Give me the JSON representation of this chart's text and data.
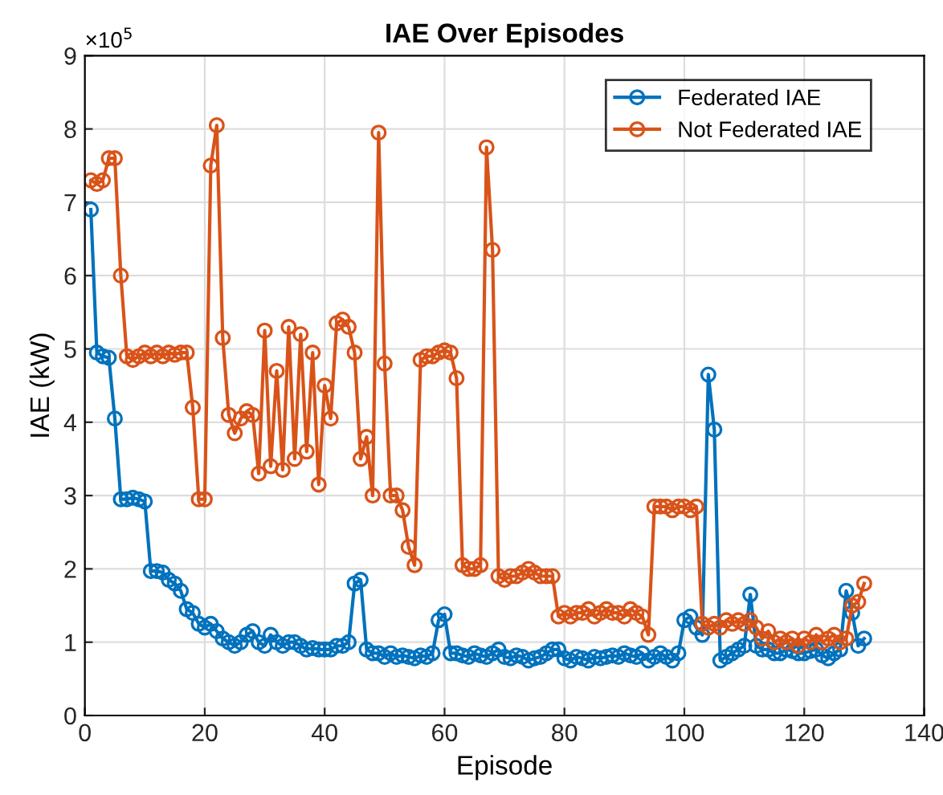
{
  "chart_data": {
    "type": "line",
    "title": "IAE Over Episodes",
    "xlabel": "Episode",
    "ylabel": "IAE (kW)",
    "annotations": [
      "×10$^{5}$"
    ],
    "x": [
      1,
      2,
      3,
      4,
      5,
      6,
      7,
      8,
      9,
      10,
      11,
      12,
      13,
      14,
      15,
      16,
      17,
      18,
      19,
      20,
      21,
      22,
      23,
      24,
      25,
      26,
      27,
      28,
      29,
      30,
      31,
      32,
      33,
      34,
      35,
      36,
      37,
      38,
      39,
      40,
      41,
      42,
      43,
      44,
      45,
      46,
      47,
      48,
      49,
      50,
      51,
      52,
      53,
      54,
      55,
      56,
      57,
      58,
      59,
      60,
      61,
      62,
      63,
      64,
      65,
      66,
      67,
      68,
      69,
      70,
      71,
      72,
      73,
      74,
      75,
      76,
      77,
      78,
      79,
      80,
      81,
      82,
      83,
      84,
      85,
      86,
      87,
      88,
      89,
      90,
      91,
      92,
      93,
      94,
      95,
      96,
      97,
      98,
      99,
      100,
      101,
      102,
      103,
      104,
      105,
      106,
      107,
      108,
      109,
      110,
      111,
      112,
      113,
      114,
      115,
      116,
      117,
      118,
      119,
      120,
      121,
      122,
      123,
      124,
      125,
      126,
      127,
      128,
      129,
      130
    ],
    "series": [
      {
        "name": "Federated IAE",
        "color": "#0072bd",
        "values": [
          6.9,
          4.95,
          4.9,
          4.88,
          4.05,
          2.95,
          2.95,
          2.97,
          2.95,
          2.92,
          1.97,
          1.97,
          1.95,
          1.85,
          1.8,
          1.7,
          1.45,
          1.4,
          1.25,
          1.2,
          1.25,
          1.15,
          1.05,
          1.0,
          0.95,
          1.0,
          1.1,
          1.15,
          1.0,
          0.95,
          1.1,
          1.0,
          0.95,
          1.0,
          1.0,
          0.95,
          0.9,
          0.92,
          0.9,
          0.9,
          0.9,
          0.95,
          0.95,
          1.0,
          1.8,
          1.85,
          0.9,
          0.85,
          0.85,
          0.8,
          0.85,
          0.8,
          0.82,
          0.8,
          0.78,
          0.82,
          0.8,
          0.85,
          1.3,
          1.38,
          0.85,
          0.85,
          0.82,
          0.8,
          0.85,
          0.82,
          0.8,
          0.85,
          0.9,
          0.8,
          0.78,
          0.82,
          0.8,
          0.75,
          0.78,
          0.8,
          0.85,
          0.9,
          0.9,
          0.78,
          0.75,
          0.8,
          0.78,
          0.75,
          0.8,
          0.78,
          0.8,
          0.82,
          0.8,
          0.85,
          0.82,
          0.8,
          0.85,
          0.75,
          0.8,
          0.85,
          0.8,
          0.75,
          0.85,
          1.3,
          1.35,
          1.2,
          1.1,
          4.65,
          3.9,
          0.75,
          0.8,
          0.85,
          0.9,
          0.95,
          1.65,
          0.95,
          0.9,
          0.9,
          0.85,
          0.85,
          0.9,
          0.88,
          0.85,
          0.85,
          0.88,
          0.9,
          0.82,
          0.78,
          0.85,
          0.9,
          1.7,
          1.4,
          0.95,
          1.05
        ]
      },
      {
        "name": "Not Federated IAE",
        "color": "#d95319",
        "values": [
          7.3,
          7.25,
          7.3,
          7.6,
          7.6,
          6.0,
          4.9,
          4.85,
          4.9,
          4.95,
          4.9,
          4.95,
          4.9,
          4.95,
          4.92,
          4.95,
          4.95,
          4.2,
          2.95,
          2.95,
          7.5,
          8.05,
          5.15,
          4.1,
          3.85,
          4.05,
          4.15,
          4.1,
          3.3,
          5.25,
          3.4,
          4.7,
          3.35,
          5.3,
          3.5,
          5.2,
          3.6,
          4.95,
          3.15,
          4.5,
          4.05,
          5.35,
          5.4,
          5.3,
          4.95,
          3.5,
          3.8,
          3.0,
          7.95,
          4.8,
          3.0,
          3.0,
          2.8,
          2.3,
          2.05,
          4.85,
          4.9,
          4.9,
          4.95,
          4.98,
          4.95,
          4.6,
          2.05,
          2.0,
          2.0,
          2.05,
          7.75,
          6.35,
          1.9,
          1.85,
          1.9,
          1.9,
          1.95,
          2.0,
          1.95,
          1.9,
          1.9,
          1.9,
          1.35,
          1.4,
          1.35,
          1.4,
          1.4,
          1.45,
          1.35,
          1.4,
          1.45,
          1.4,
          1.4,
          1.35,
          1.45,
          1.4,
          1.35,
          1.1,
          2.85,
          2.85,
          2.85,
          2.8,
          2.85,
          2.85,
          2.8,
          2.85,
          1.25,
          1.2,
          1.25,
          1.2,
          1.3,
          1.25,
          1.3,
          1.25,
          1.3,
          1.2,
          1.05,
          1.15,
          1.0,
          1.05,
          1.0,
          1.05,
          0.95,
          1.05,
          1.0,
          1.1,
          1.0,
          1.05,
          1.1,
          1.0,
          1.05,
          1.5,
          1.55,
          1.8
        ]
      }
    ],
    "xlim": [
      0,
      140
    ],
    "xticks": [
      0,
      20,
      40,
      60,
      80,
      100,
      120,
      140
    ],
    "ylim": [
      0,
      9
    ],
    "yticks": [
      0,
      1,
      2,
      3,
      4,
      5,
      6,
      7,
      8,
      9
    ],
    "grid": true,
    "legend": "top right",
    "marker": "circle",
    "line_style": "solid"
  }
}
